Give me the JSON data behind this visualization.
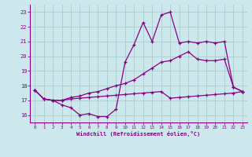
{
  "xlabel": "Windchill (Refroidissement éolien,°C)",
  "x": [
    0,
    1,
    2,
    3,
    4,
    5,
    6,
    7,
    8,
    9,
    10,
    11,
    12,
    13,
    14,
    15,
    16,
    17,
    18,
    19,
    20,
    21,
    22,
    23
  ],
  "line1": [
    17.7,
    17.1,
    17.0,
    16.7,
    16.5,
    16.0,
    16.1,
    15.9,
    15.9,
    16.4,
    19.6,
    20.8,
    22.3,
    21.0,
    22.8,
    23.0,
    20.9,
    21.0,
    20.9,
    21.0,
    20.9,
    21.0,
    17.9,
    17.6
  ],
  "line2": [
    17.7,
    17.1,
    17.0,
    17.0,
    17.1,
    17.15,
    17.2,
    17.25,
    17.3,
    17.35,
    17.4,
    17.45,
    17.5,
    17.55,
    17.6,
    17.15,
    17.2,
    17.25,
    17.3,
    17.35,
    17.4,
    17.45,
    17.5,
    17.6
  ],
  "line3": [
    17.7,
    17.1,
    17.0,
    17.0,
    17.2,
    17.3,
    17.5,
    17.6,
    17.8,
    18.0,
    18.15,
    18.4,
    18.8,
    19.2,
    19.6,
    19.7,
    20.0,
    20.3,
    19.8,
    19.7,
    19.7,
    19.8,
    17.9,
    17.6
  ],
  "bg_color": "#cce8ec",
  "line_color": "#880088",
  "grid_color": "#aacccc",
  "ylim": [
    15.5,
    23.5
  ],
  "xlim": [
    -0.5,
    23.5
  ],
  "yticks": [
    16,
    17,
    18,
    19,
    20,
    21,
    22,
    23
  ],
  "xticks": [
    0,
    1,
    2,
    3,
    4,
    5,
    6,
    7,
    8,
    9,
    10,
    11,
    12,
    13,
    14,
    15,
    16,
    17,
    18,
    19,
    20,
    21,
    22,
    23
  ]
}
